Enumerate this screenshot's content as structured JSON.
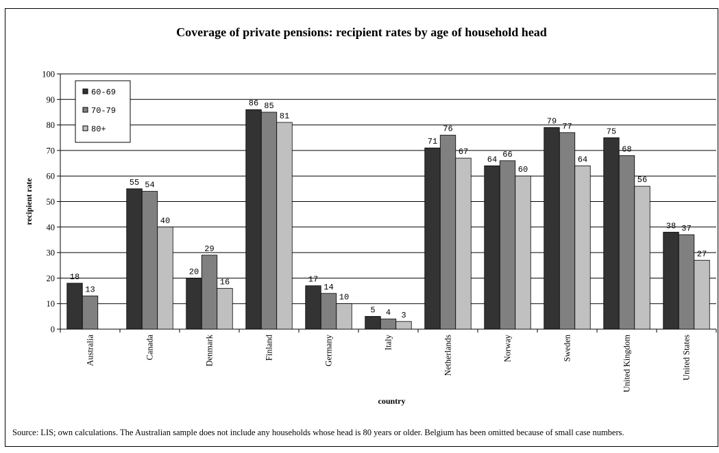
{
  "chart_data": {
    "type": "bar",
    "title": "Coverage of private pensions: recipient rates by age of household head",
    "xlabel": "country",
    "ylabel": "recipient rate",
    "ylim": [
      0,
      100
    ],
    "yticks": [
      0,
      10,
      20,
      30,
      40,
      50,
      60,
      70,
      80,
      90,
      100
    ],
    "grid": true,
    "legend_position": "top-left",
    "categories": [
      "Australia",
      "Canada",
      "Denmark",
      "Finland",
      "Germany",
      "Italy",
      "Netherlands",
      "Norway",
      "Sweden",
      "United Kingdom",
      "United States"
    ],
    "series": [
      {
        "name": "60-69",
        "color": "#333333",
        "values": [
          18,
          55,
          20,
          86,
          17,
          5,
          71,
          64,
          79,
          75,
          38
        ]
      },
      {
        "name": "70-79",
        "color": "#808080",
        "values": [
          13,
          54,
          29,
          85,
          14,
          4,
          76,
          66,
          77,
          68,
          37
        ]
      },
      {
        "name": "80+",
        "color": "#c0c0c0",
        "values": [
          null,
          40,
          16,
          81,
          10,
          3,
          67,
          60,
          64,
          56,
          27
        ]
      }
    ],
    "data_labels": [
      [
        "18",
        "55",
        "20",
        "86",
        "17",
        "5",
        "71",
        "64",
        "79",
        "75",
        "38"
      ],
      [
        "13",
        "54",
        "29",
        "85",
        "14",
        "4",
        "76",
        "66",
        "77",
        "68",
        "37"
      ],
      [
        "",
        "40",
        "16",
        "81",
        "10",
        "3",
        "67",
        "60",
        "64",
        "56",
        "27"
      ]
    ],
    "source": "Source: LIS; own calculations.  The Australian sample does not include any households whose head is 80 years or older.  Belgium has been omitted because of small case numbers."
  }
}
